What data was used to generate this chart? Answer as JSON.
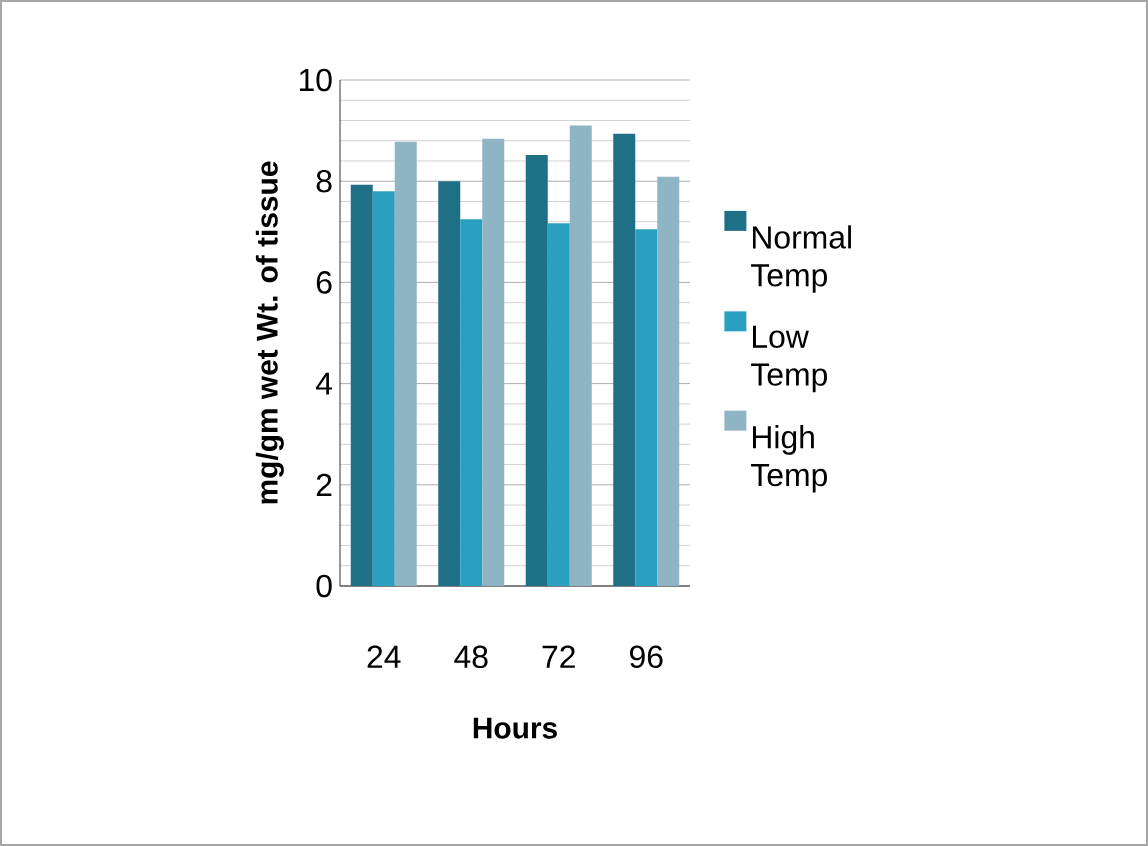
{
  "chart_data": {
    "type": "bar",
    "xlabel": "Hours",
    "ylabel": "mg/gm wet Wt. of tissue",
    "categories": [
      "24",
      "48",
      "72",
      "96"
    ],
    "series": [
      {
        "name": "Normal Temp",
        "color": "#1f6f86",
        "values": [
          7.93,
          8.0,
          8.52,
          8.94
        ]
      },
      {
        "name": "Low Temp",
        "color": "#2aa0c0",
        "values": [
          7.8,
          7.25,
          7.17,
          7.05
        ]
      },
      {
        "name": "High Temp",
        "color": "#8fb4c4",
        "values": [
          8.78,
          8.84,
          9.1,
          8.09
        ]
      }
    ],
    "ylim": [
      0,
      10
    ],
    "yticks": [
      0,
      2,
      4,
      6,
      8,
      10
    ],
    "grid": "y",
    "legend": "right"
  }
}
